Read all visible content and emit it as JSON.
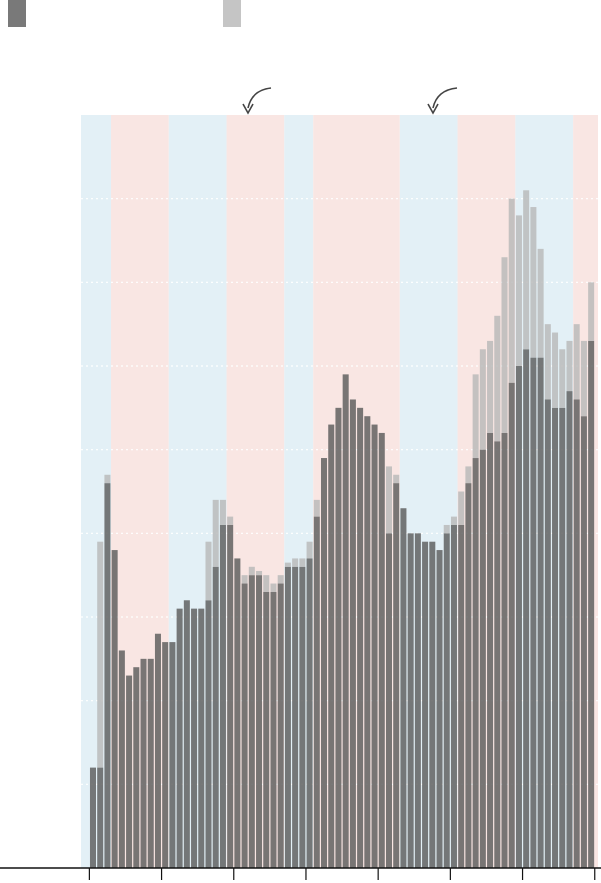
{
  "chart_data": {
    "type": "stacked-bar",
    "series": [
      {
        "color": "#5c5c5c",
        "values": [
          1.2,
          1.2,
          4.6,
          3.8,
          2.6,
          2.3,
          2.4,
          2.5,
          2.5,
          2.8,
          2.7,
          2.7,
          3.1,
          3.2,
          3.1,
          3.1,
          3.2,
          3.6,
          4.1,
          4.1,
          3.7,
          3.4,
          3.5,
          3.5,
          3.3,
          3.3,
          3.4,
          3.6,
          3.6,
          3.6,
          3.7,
          4.2,
          4.9,
          5.3,
          5.5,
          5.9,
          5.6,
          5.5,
          5.4,
          5.3,
          5.2,
          4.0,
          4.6,
          4.3,
          4.0,
          4.0,
          3.9,
          3.9,
          3.8,
          4.0,
          4.1,
          4.1,
          4.6,
          4.9,
          5.0,
          5.2,
          5.1,
          5.2,
          5.8,
          6.0,
          6.2,
          6.1,
          6.1,
          5.6,
          5.5,
          5.5,
          5.7,
          5.6,
          5.4,
          6.3
        ]
      },
      {
        "color": "#b8b8b8",
        "values": [
          0,
          2.7,
          0.1,
          0,
          0,
          0,
          0,
          0,
          0,
          0,
          0,
          0,
          0,
          0,
          0,
          0,
          0.7,
          0.8,
          0.3,
          0.1,
          0,
          0.1,
          0.1,
          0.05,
          0.2,
          0.1,
          0.1,
          0.05,
          0.1,
          0.1,
          0.2,
          0.2,
          0,
          0,
          0,
          0,
          0,
          0,
          0,
          0,
          0,
          0.8,
          0.1,
          0,
          0,
          0,
          0,
          0,
          0,
          0.1,
          0.1,
          0.4,
          0.2,
          1.0,
          1.2,
          1.1,
          1.5,
          2.1,
          2.2,
          1.8,
          1.9,
          1.8,
          1.3,
          0.9,
          0.9,
          0.7,
          0.6,
          0.9,
          0.9,
          0.7
        ]
      }
    ],
    "ylim": [
      0,
      9
    ],
    "yticks": [
      1,
      2,
      3,
      4,
      5,
      6,
      7,
      8
    ],
    "grid": true,
    "xlim": [
      -1.66,
      69.95
    ],
    "xticks": [
      -0.5,
      9.5,
      19.5,
      29.5,
      39.5,
      49.5,
      59.5,
      69.5
    ],
    "bands": [
      {
        "start": -1.66,
        "end": 2.5,
        "color": "#e3f0f6"
      },
      {
        "start": 2.5,
        "end": 10.5,
        "color": "#f9e6e3"
      },
      {
        "start": 10.5,
        "end": 18.5,
        "color": "#e3f0f6"
      },
      {
        "start": 18.5,
        "end": 26.5,
        "color": "#f9e6e3"
      },
      {
        "start": 26.5,
        "end": 30.5,
        "color": "#e3f0f6"
      },
      {
        "start": 30.5,
        "end": 42.5,
        "color": "#f9e6e3"
      },
      {
        "start": 42.5,
        "end": 50.5,
        "color": "#e3f0f6"
      },
      {
        "start": 50.5,
        "end": 58.5,
        "color": "#f9e6e3"
      },
      {
        "start": 58.5,
        "end": 66.5,
        "color": "#e3f0f6"
      },
      {
        "start": 66.5,
        "end": 69.95,
        "color": "#f9e6e3"
      }
    ]
  }
}
